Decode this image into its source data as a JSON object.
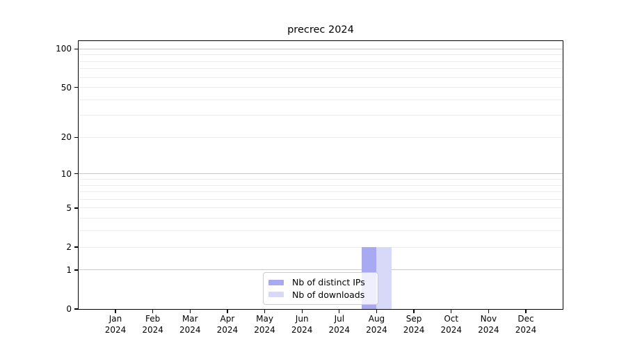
{
  "chart_data": {
    "type": "bar",
    "title": "precrec 2024",
    "categories": [
      "Jan 2024",
      "Feb 2024",
      "Mar 2024",
      "Apr 2024",
      "May 2024",
      "Jun 2024",
      "Jul 2024",
      "Aug 2024",
      "Sep 2024",
      "Oct 2024",
      "Nov 2024",
      "Dec 2024"
    ],
    "series": [
      {
        "name": "Nb of distinct IPs",
        "color": "#a9a9f1",
        "values": [
          0,
          0,
          0,
          0,
          0,
          0,
          0,
          2,
          0,
          0,
          0,
          0
        ]
      },
      {
        "name": "Nb of downloads",
        "color": "#d8d8f8",
        "values": [
          0,
          0,
          0,
          0,
          0,
          0,
          0,
          2,
          0,
          0,
          0,
          0
        ]
      }
    ],
    "xlabel": "",
    "ylabel": "",
    "y_scale": "log1p",
    "ylim": [
      0,
      115
    ],
    "y_ticks": [
      0,
      1,
      2,
      5,
      10,
      20,
      50,
      100
    ],
    "y_major_grid": [
      1,
      10,
      100
    ],
    "y_minor_grid": [
      2,
      3,
      4,
      5,
      6,
      7,
      8,
      9,
      20,
      30,
      40,
      50,
      60,
      70,
      80,
      90
    ],
    "grid": true,
    "legend_position": "lower center"
  },
  "colors": {
    "major_grid": "#c9c9c9",
    "minor_grid": "#ececec",
    "axis": "#000000",
    "legend_border": "#cccccc",
    "background": "#ffffff"
  }
}
